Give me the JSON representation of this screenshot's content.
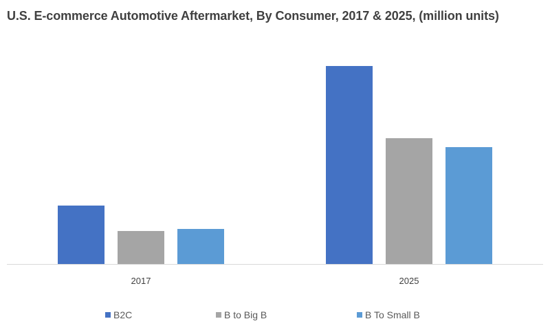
{
  "chart_data": {
    "type": "bar",
    "title": "U.S. E-commerce Automotive Aftermarket, By Consumer, 2017 & 2025, (million units)",
    "xlabel": "",
    "ylabel": "",
    "categories": [
      "2017",
      "2025"
    ],
    "series": [
      {
        "name": "B2C",
        "color": "#4472C4",
        "values": [
          85,
          288
        ]
      },
      {
        "name": "B to Big B",
        "color": "#A5A5A5",
        "values": [
          48,
          183
        ]
      },
      {
        "name": "B To Small B",
        "color": "#5B9BD5",
        "values": [
          51,
          170
        ]
      }
    ],
    "ylim": [
      0,
      330
    ],
    "grid": false,
    "legend": "bottom"
  }
}
